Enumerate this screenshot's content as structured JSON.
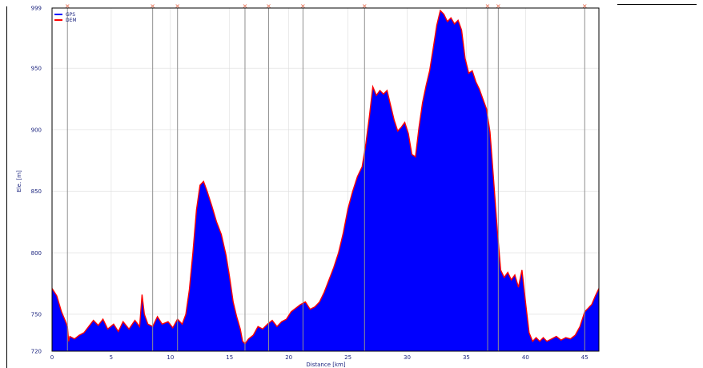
{
  "chart_data": {
    "type": "area",
    "xlabel": "Distance [km]",
    "ylabel": "Ele. [m]",
    "xlim": [
      0,
      46.2
    ],
    "ylim": [
      720,
      999
    ],
    "x_ticks": [
      0,
      5,
      10,
      15,
      20,
      25,
      30,
      35,
      40,
      45
    ],
    "y_ticks": [
      720,
      750,
      800,
      850,
      900,
      950,
      999
    ],
    "grid": true,
    "legend_position": "top-left",
    "series": [
      {
        "name": "GPS",
        "color": "#0000ff",
        "x": [
          0,
          0.4,
          0.8,
          1.1,
          1.3,
          1.4,
          1.5,
          1.9,
          2.3,
          2.7,
          3.1,
          3.5,
          3.9,
          4.3,
          4.7,
          5.2,
          5.6,
          6.0,
          6.5,
          7.0,
          7.4,
          7.6,
          7.8,
          8.1,
          8.5,
          8.9,
          9.3,
          9.8,
          10.2,
          10.6,
          11.0,
          11.3,
          11.6,
          11.9,
          12.2,
          12.5,
          12.8,
          13.1,
          13.5,
          13.9,
          14.3,
          14.7,
          15.0,
          15.3,
          15.6,
          15.9,
          16.1,
          16.3,
          16.6,
          17.0,
          17.4,
          17.8,
          18.2,
          18.6,
          19.0,
          19.4,
          19.8,
          20.2,
          20.6,
          21.0,
          21.4,
          21.8,
          22.2,
          22.6,
          23.0,
          23.4,
          23.8,
          24.2,
          24.6,
          25.0,
          25.4,
          25.8,
          26.2,
          26.5,
          26.8,
          27.1,
          27.4,
          27.7,
          28.0,
          28.3,
          28.6,
          28.9,
          29.2,
          29.5,
          29.8,
          30.1,
          30.4,
          30.7,
          31.0,
          31.3,
          31.6,
          31.9,
          32.2,
          32.5,
          32.8,
          33.1,
          33.4,
          33.7,
          34.0,
          34.3,
          34.6,
          34.9,
          35.2,
          35.5,
          35.8,
          36.1,
          36.4,
          36.7,
          37.0,
          37.3,
          37.6,
          37.9,
          38.2,
          38.5,
          38.8,
          39.1,
          39.4,
          39.7,
          40.0,
          40.3,
          40.6,
          40.9,
          41.2,
          41.5,
          41.8,
          42.2,
          42.6,
          43.0,
          43.4,
          43.8,
          44.2,
          44.6,
          45.0,
          45.3,
          45.6,
          45.9,
          46.2
        ],
        "elevation": [
          771,
          765,
          752,
          745,
          740,
          728,
          732,
          730,
          733,
          735,
          740,
          745,
          741,
          746,
          738,
          742,
          736,
          744,
          738,
          745,
          740,
          766,
          750,
          742,
          740,
          748,
          742,
          744,
          739,
          746,
          742,
          750,
          770,
          800,
          835,
          855,
          858,
          850,
          838,
          825,
          815,
          798,
          780,
          760,
          748,
          738,
          728,
          726,
          730,
          733,
          740,
          738,
          742,
          745,
          740,
          744,
          746,
          752,
          755,
          758,
          760,
          754,
          756,
          760,
          768,
          778,
          788,
          800,
          816,
          836,
          850,
          862,
          870,
          888,
          910,
          935,
          928,
          932,
          929,
          932,
          920,
          908,
          899,
          902,
          906,
          897,
          880,
          878,
          902,
          922,
          936,
          948,
          966,
          985,
          997,
          994,
          988,
          991,
          986,
          989,
          981,
          958,
          946,
          948,
          939,
          933,
          925,
          917,
          898,
          860,
          820,
          786,
          780,
          784,
          778,
          782,
          772,
          786,
          760,
          735,
          728,
          731,
          728,
          731,
          728,
          730,
          732,
          729,
          731,
          730,
          733,
          740,
          752,
          755,
          758,
          765,
          771
        ]
      },
      {
        "name": "DEM",
        "color": "#ff0000"
      }
    ],
    "markers": {
      "symbol": "x",
      "x": [
        1.3,
        8.5,
        10.6,
        16.3,
        18.3,
        21.2,
        26.4,
        36.8,
        37.7,
        45.0
      ]
    }
  }
}
